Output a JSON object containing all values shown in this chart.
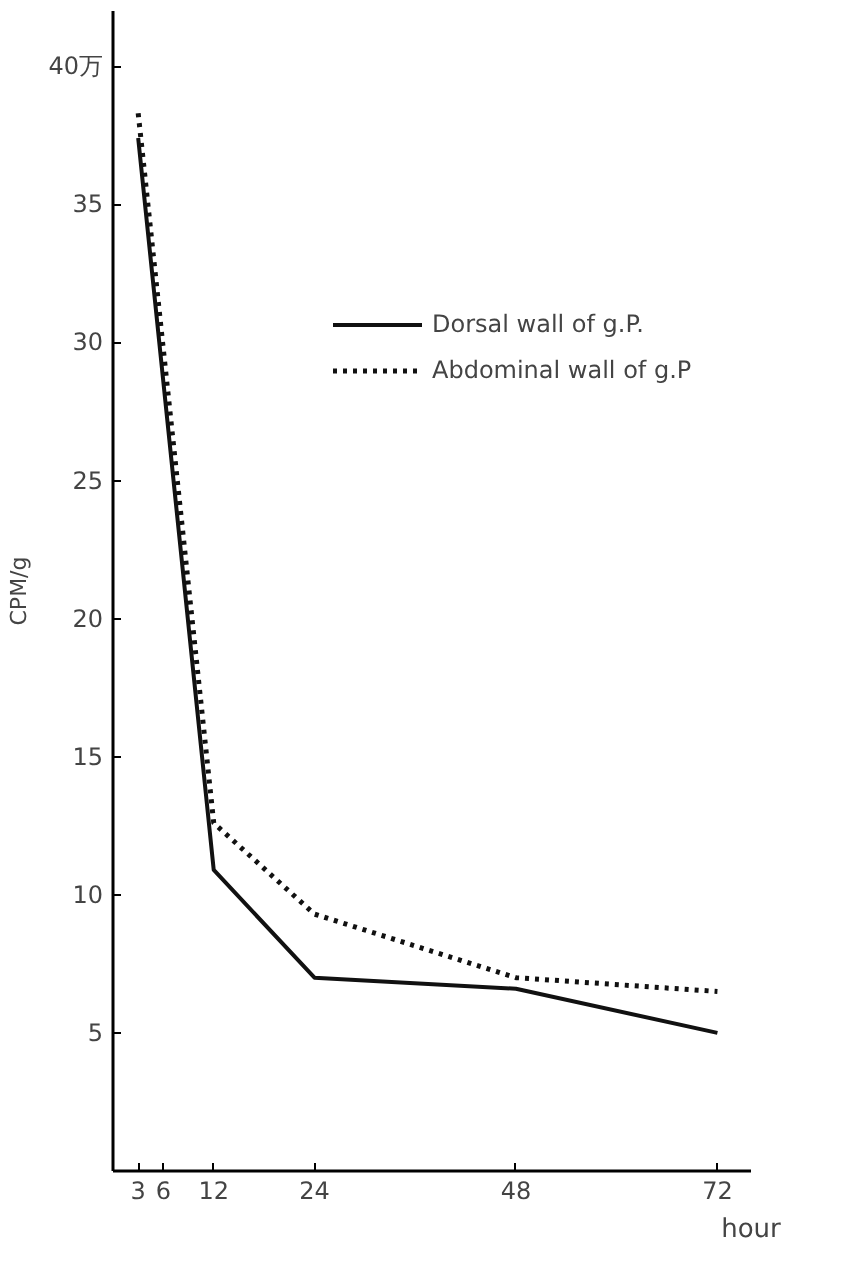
{
  "chart_data": {
    "type": "line",
    "ylabel": "CPM/g",
    "xlabel": "hour",
    "xlim": [
      0,
      76
    ],
    "xticks": [
      3,
      6,
      12,
      24,
      48,
      72
    ],
    "ylim": [
      0,
      42
    ],
    "yticks": [
      5,
      10,
      15,
      20,
      25,
      30,
      35,
      {
        "value": 40,
        "label": "40万"
      }
    ],
    "grid": false,
    "legend": "top right",
    "marker": "none",
    "series": [
      {
        "name": "Dorsal wall of g.P.",
        "color": "#111111",
        "line_style": "solid",
        "x": [
          3,
          12,
          24,
          48,
          72
        ],
        "values": [
          37.4,
          10.9,
          7.0,
          6.6,
          5.0
        ]
      },
      {
        "name": "Abdominal wall of g.P",
        "color": "#111111",
        "line_style": "dotted",
        "x": [
          3,
          12,
          24,
          48,
          72
        ],
        "values": [
          38.3,
          12.6,
          9.3,
          7.0,
          6.5
        ]
      }
    ]
  }
}
